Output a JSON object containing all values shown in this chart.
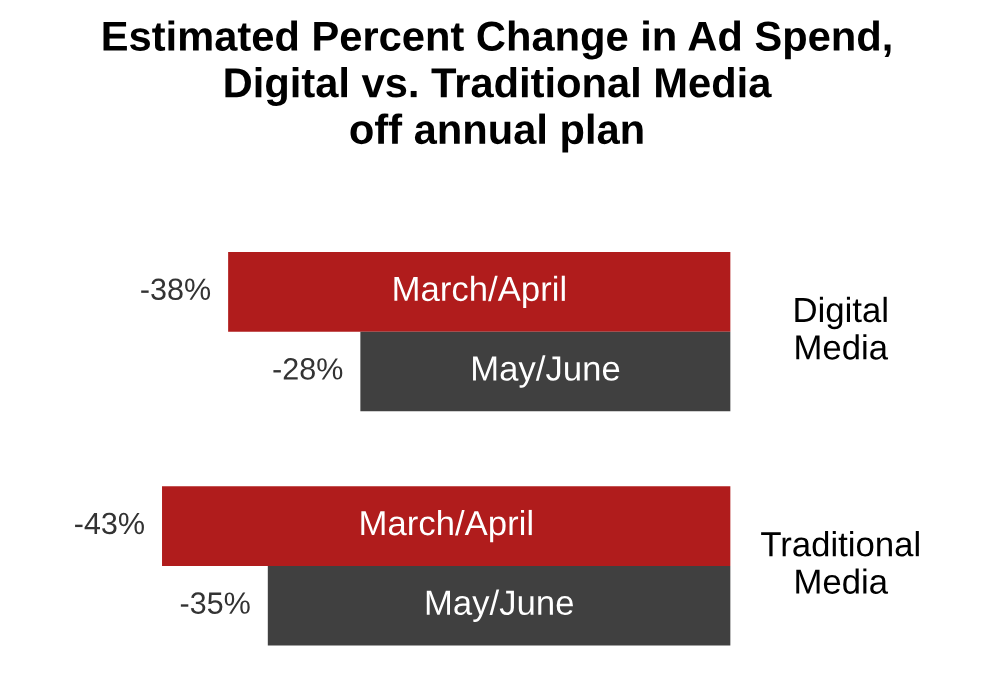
{
  "chart_data": {
    "type": "bar",
    "orientation": "horizontal",
    "title": "Estimated Percent Change in Ad Spend,\nDigital vs. Traditional Media\noff annual plan",
    "categories": [
      "Digital\nMedia",
      "Traditional\nMedia"
    ],
    "series": [
      {
        "name": "March/April",
        "color": "#b01c1c",
        "values": [
          -38,
          -43
        ],
        "value_labels": [
          "-38%",
          "-43%"
        ]
      },
      {
        "name": "May/June",
        "color": "#404040",
        "values": [
          -28,
          -35
        ],
        "value_labels": [
          "-28%",
          "-35%"
        ]
      }
    ],
    "legend": false
  }
}
